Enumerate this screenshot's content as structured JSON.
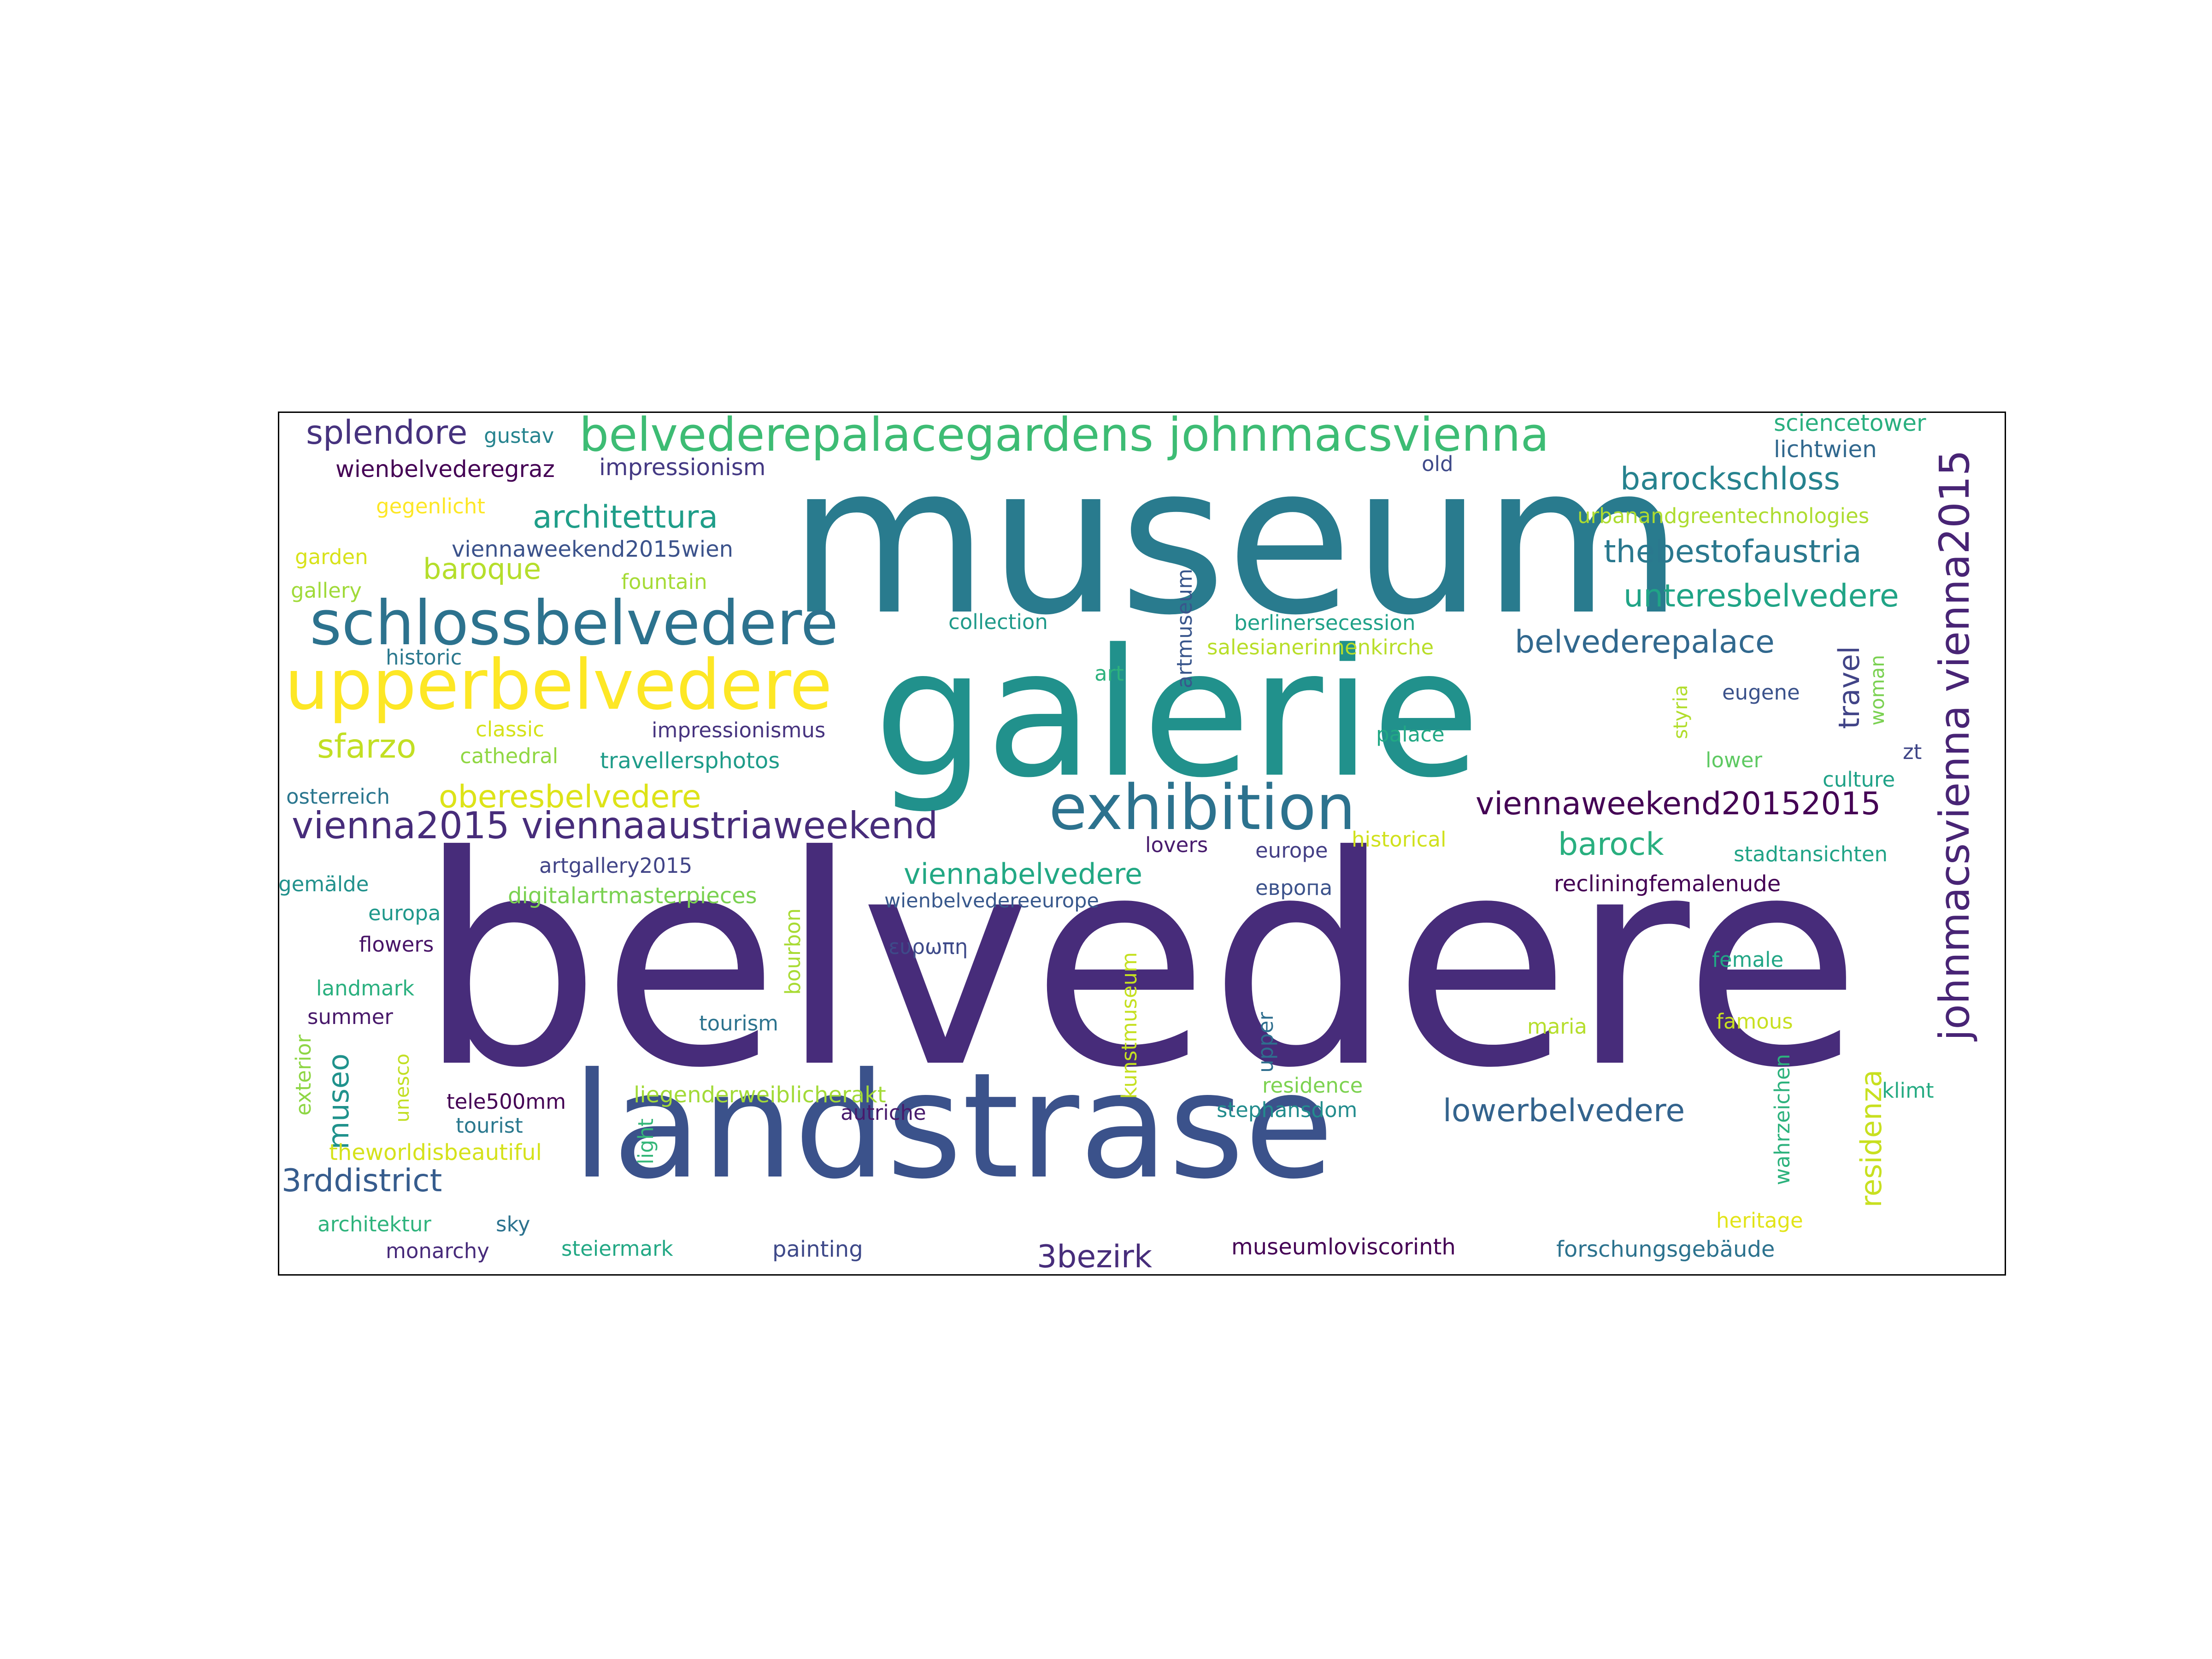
{
  "palette": {
    "background": "#ffffff",
    "frame": "#000000",
    "colormap": "viridis"
  },
  "words": [
    {
      "id": "belvedere",
      "text": "belvedere",
      "color": "#472c7a",
      "rank": 1
    },
    {
      "id": "museum",
      "text": "museum",
      "color": "#297b8e",
      "rank": 2
    },
    {
      "id": "galerie",
      "text": "galerie",
      "color": "#21918c",
      "rank": 3
    },
    {
      "id": "landstrase",
      "text": "landstrase",
      "color": "#3b528b",
      "rank": 4
    },
    {
      "id": "schlossbelvedere",
      "text": "schlossbelvedere",
      "color": "#2c728e",
      "rank": 5
    },
    {
      "id": "upperbelvedere",
      "text": "upperbelvedere",
      "color": "#fde725",
      "rank": 6
    },
    {
      "id": "belvederepalacegardens-johnmacsvienna",
      "text": "belvederepalacegardens johnmacsvienna",
      "color": "#3dbc74",
      "rank": 7
    },
    {
      "id": "exhibition",
      "text": "exhibition",
      "color": "#2c728e",
      "rank": 8
    },
    {
      "id": "johnmacsvienna-vienna2015",
      "text": "johnmacsvienna vienna2015",
      "color": "#482475",
      "rank": 9
    },
    {
      "id": "vienna2015-viennaaustriaweekend",
      "text": "vienna2015 viennaaustriaweekend",
      "color": "#472c7a",
      "rank": 10
    },
    {
      "id": "splendore",
      "text": "splendore",
      "color": "#46327e",
      "rank": 11
    },
    {
      "id": "sfarzo",
      "text": "sfarzo",
      "color": "#c2df23",
      "rank": 12
    },
    {
      "id": "viennaweekend20152015",
      "text": "viennaweekend20152015",
      "color": "#440154",
      "rank": 13
    },
    {
      "id": "architettura",
      "text": "architettura",
      "color": "#1f9e89",
      "rank": 14
    },
    {
      "id": "barockschloss",
      "text": "barockschloss",
      "color": "#26828e",
      "rank": 15
    },
    {
      "id": "thebestofaustria",
      "text": "thebestofaustria",
      "color": "#2a788e",
      "rank": 16
    },
    {
      "id": "unteresbelvedere",
      "text": "unteresbelvedere",
      "color": "#20a486",
      "rank": 17
    },
    {
      "id": "belvederepalace",
      "text": "belvederepalace",
      "color": "#31688e",
      "rank": 18
    },
    {
      "id": "oberesbelvedere",
      "text": "oberesbelvedere",
      "color": "#dde318",
      "rank": 19
    },
    {
      "id": "baroque",
      "text": "baroque",
      "color": "#b5de2b",
      "rank": 20
    },
    {
      "id": "viennabelvedere",
      "text": "viennabelvedere",
      "color": "#22a884",
      "rank": 21
    },
    {
      "id": "lowerbelvedere",
      "text": "lowerbelvedere",
      "color": "#33638d",
      "rank": 22
    },
    {
      "id": "barock",
      "text": "barock",
      "color": "#29af7f",
      "rank": 23
    },
    {
      "id": "travel",
      "text": "travel",
      "color": "#414487",
      "rank": 24
    },
    {
      "id": "museo",
      "text": "museo",
      "color": "#20928c",
      "rank": 25
    },
    {
      "id": "residenza",
      "text": "residenza",
      "color": "#c8e020",
      "rank": 26
    },
    {
      "id": "3rddistrict",
      "text": "3rddistrict",
      "color": "#365c8d",
      "rank": 27
    },
    {
      "id": "3bezirk",
      "text": "3bezirk",
      "color": "#472d7b",
      "rank": 28
    },
    {
      "id": "gustav",
      "text": "gustav",
      "color": "#25838e",
      "rank": 29
    },
    {
      "id": "sciencetower",
      "text": "sciencetower",
      "color": "#29af7f",
      "rank": 30
    },
    {
      "id": "lichtwien",
      "text": "lichtwien",
      "color": "#31688e",
      "rank": 31
    },
    {
      "id": "wienbelvederegraz",
      "text": "wienbelvederegraz",
      "color": "#440154",
      "rank": 32
    },
    {
      "id": "impressionism",
      "text": "impressionism",
      "color": "#443983",
      "rank": 33
    },
    {
      "id": "old",
      "text": "old",
      "color": "#3e4989",
      "rank": 34
    },
    {
      "id": "urbanandgreentechnologies",
      "text": "urbanandgreentechnologies",
      "color": "#addc30",
      "rank": 35
    },
    {
      "id": "gegenlicht",
      "text": "gegenlicht",
      "color": "#fde725",
      "rank": 36
    },
    {
      "id": "viennaweekend2015wien",
      "text": "viennaweekend2015wien",
      "color": "#3b528b",
      "rank": 37
    },
    {
      "id": "garden",
      "text": "garden",
      "color": "#d8e219",
      "rank": 38
    },
    {
      "id": "fountain",
      "text": "fountain",
      "color": "#a5db36",
      "rank": 39
    },
    {
      "id": "gallery",
      "text": "gallery",
      "color": "#a0da39",
      "rank": 40
    },
    {
      "id": "collection",
      "text": "collection",
      "color": "#1f9a8a",
      "rank": 41
    },
    {
      "id": "artmuseum",
      "text": "artmuseum",
      "color": "#39568c",
      "rank": 42
    },
    {
      "id": "berlinersecession",
      "text": "berlinersecession",
      "color": "#1fa188",
      "rank": 43
    },
    {
      "id": "historic",
      "text": "historic",
      "color": "#2a788e",
      "rank": 44
    },
    {
      "id": "salesianerinnenkirche",
      "text": "salesianerinnenkirche",
      "color": "#b8de29",
      "rank": 45
    },
    {
      "id": "art",
      "text": "art",
      "color": "#2db27d",
      "rank": 46
    },
    {
      "id": "woman",
      "text": "woman",
      "color": "#7ad151",
      "rank": 47
    },
    {
      "id": "eugene",
      "text": "eugene",
      "color": "#3b528b",
      "rank": 48
    },
    {
      "id": "styria",
      "text": "styria",
      "color": "#b2dd2d",
      "rank": 49
    },
    {
      "id": "classic",
      "text": "classic",
      "color": "#d5e21a",
      "rank": 50
    },
    {
      "id": "cathedral",
      "text": "cathedral",
      "color": "#90d743",
      "rank": 51
    },
    {
      "id": "impressionismus",
      "text": "impressionismus",
      "color": "#46337f",
      "rank": 52
    },
    {
      "id": "palace",
      "text": "palace",
      "color": "#22a884",
      "rank": 53
    },
    {
      "id": "zt",
      "text": "zt",
      "color": "#404688",
      "rank": 54
    },
    {
      "id": "lower",
      "text": "lower",
      "color": "#5ec962",
      "rank": 55
    },
    {
      "id": "travellersphotos",
      "text": "travellersphotos",
      "color": "#1e9c89",
      "rank": 56
    },
    {
      "id": "culture",
      "text": "culture",
      "color": "#1fa287",
      "rank": 57
    },
    {
      "id": "osterreich",
      "text": "osterreich",
      "color": "#2a768e",
      "rank": 58
    },
    {
      "id": "historical",
      "text": "historical",
      "color": "#d0e11c",
      "rank": 59
    },
    {
      "id": "lovers",
      "text": "lovers",
      "color": "#481b6d",
      "rank": 60
    },
    {
      "id": "europe",
      "text": "europe",
      "color": "#433e85",
      "rank": 61
    },
    {
      "id": "stadtansichten",
      "text": "stadtansichten",
      "color": "#20a386",
      "rank": 62
    },
    {
      "id": "artgallery2015",
      "text": "artgallery2015",
      "color": "#414487",
      "rank": 63
    },
    {
      "id": "gemalde",
      "text": "gemälde",
      "color": "#21918c",
      "rank": 64
    },
    {
      "id": "digitalartmasterpieces",
      "text": "digitalartmasterpieces",
      "color": "#7ad151",
      "rank": 65
    },
    {
      "id": "wienbelvedereeurope",
      "text": "wienbelvedereeurope",
      "color": "#38588c",
      "rank": 66
    },
    {
      "id": "evropa",
      "text": "европа",
      "color": "#3b528b",
      "rank": 67
    },
    {
      "id": "recliningfemalenude",
      "text": "recliningfemalenude",
      "color": "#440154",
      "rank": 68
    },
    {
      "id": "europa",
      "text": "europa",
      "color": "#1f988b",
      "rank": 69
    },
    {
      "id": "flowers",
      "text": "flowers",
      "color": "#481467",
      "rank": 70
    },
    {
      "id": "bourbon",
      "text": "bourbon",
      "color": "#a8db34",
      "rank": 71
    },
    {
      "id": "evropi",
      "text": "ευρωπη",
      "color": "#3e4a89",
      "rank": 72
    },
    {
      "id": "female",
      "text": "female",
      "color": "#21a685",
      "rank": 73
    },
    {
      "id": "landmark",
      "text": "landmark",
      "color": "#2ab07f",
      "rank": 74
    },
    {
      "id": "summer",
      "text": "summer",
      "color": "#48186a",
      "rank": 75
    },
    {
      "id": "kunstmuseum",
      "text": "kunstmuseum",
      "color": "#c5e021",
      "rank": 76
    },
    {
      "id": "tourism",
      "text": "tourism",
      "color": "#2c738e",
      "rank": 77
    },
    {
      "id": "upper",
      "text": "upper",
      "color": "#2e6e8e",
      "rank": 78
    },
    {
      "id": "maria",
      "text": "maria",
      "color": "#b5de2b",
      "rank": 79
    },
    {
      "id": "famous",
      "text": "famous",
      "color": "#c8e020",
      "rank": 80
    },
    {
      "id": "exterior",
      "text": "exterior",
      "color": "#8ed645",
      "rank": 81
    },
    {
      "id": "unesco",
      "text": "unesco",
      "color": "#c2df23",
      "rank": 82
    },
    {
      "id": "residence",
      "text": "residence",
      "color": "#7cd250",
      "rank": 83
    },
    {
      "id": "wahrzeichen",
      "text": "wahrzeichen",
      "color": "#2db27d",
      "rank": 84
    },
    {
      "id": "klimt",
      "text": "klimt",
      "color": "#25ab82",
      "rank": 85
    },
    {
      "id": "tele500mm",
      "text": "tele500mm",
      "color": "#440154",
      "rank": 86
    },
    {
      "id": "liegenderweiblicherakt",
      "text": "liegenderweiblicherakt",
      "color": "#a2da37",
      "rank": 87
    },
    {
      "id": "stephansdom",
      "text": "stephansdom",
      "color": "#228c8d",
      "rank": 88
    },
    {
      "id": "tourist",
      "text": "tourist",
      "color": "#2a788e",
      "rank": 89
    },
    {
      "id": "autriche",
      "text": "autriche",
      "color": "#481a6c",
      "rank": 90
    },
    {
      "id": "light",
      "text": "light",
      "color": "#35b779",
      "rank": 91
    },
    {
      "id": "theworldisbeautiful",
      "text": "theworldisbeautiful",
      "color": "#d5e21a",
      "rank": 92
    },
    {
      "id": "architektur",
      "text": "architektur",
      "color": "#2eb37c",
      "rank": 93
    },
    {
      "id": "sky",
      "text": "sky",
      "color": "#2c728e",
      "rank": 94
    },
    {
      "id": "heritage",
      "text": "heritage",
      "color": "#e2e418",
      "rank": 95
    },
    {
      "id": "monarchy",
      "text": "monarchy",
      "color": "#472a7a",
      "rank": 96
    },
    {
      "id": "steiermark",
      "text": "steiermark",
      "color": "#22a884",
      "rank": 97
    },
    {
      "id": "painting",
      "text": "painting",
      "color": "#3e4989",
      "rank": 98
    },
    {
      "id": "museumloviscorinth",
      "text": "museumloviscorinth",
      "color": "#440154",
      "rank": 99
    },
    {
      "id": "forschungsgebaude",
      "text": "forschungsgebäude",
      "color": "#2c728e",
      "rank": 100
    }
  ]
}
